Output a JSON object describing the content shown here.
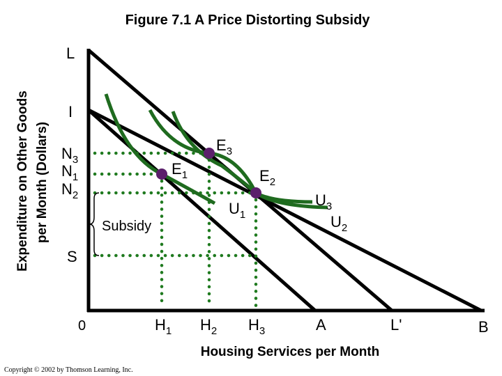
{
  "title": "Figure 7.1 A Price Distorting Subsidy",
  "y_axis_title_line1": "Expenditure on Other Goods",
  "y_axis_title_line2": "per Month (Dollars)",
  "x_axis_title": "Housing Services per Month",
  "copyright": "Copyright © 2002 by Thomson Learning, Inc.",
  "origin_label": "0",
  "subsidy_label": "Subsidy",
  "y_labels": {
    "L": "L",
    "I": "I",
    "N3": {
      "base": "N",
      "sub": "3"
    },
    "N1": {
      "base": "N",
      "sub": "1"
    },
    "N2": {
      "base": "N",
      "sub": "2"
    },
    "S": "S"
  },
  "x_labels": {
    "H1": {
      "base": "H",
      "sub": "1"
    },
    "H2": {
      "base": "H",
      "sub": "2"
    },
    "H3": {
      "base": "H",
      "sub": "3"
    },
    "A": "A",
    "Lp": "L'",
    "B": "B"
  },
  "point_labels": {
    "E1": {
      "base": "E",
      "sub": "1"
    },
    "E2": {
      "base": "E",
      "sub": "2"
    },
    "E3": {
      "base": "E",
      "sub": "3"
    }
  },
  "curve_labels": {
    "U1": {
      "base": "U",
      "sub": "1"
    },
    "U2": {
      "base": "U",
      "sub": "2"
    },
    "U3": {
      "base": "U",
      "sub": "3"
    }
  },
  "colors": {
    "budget_line": "#000000",
    "indifference_curve": "#1f6b1f",
    "guide_dots": "#1f7a1f",
    "point": "#5b1f6b"
  }
}
